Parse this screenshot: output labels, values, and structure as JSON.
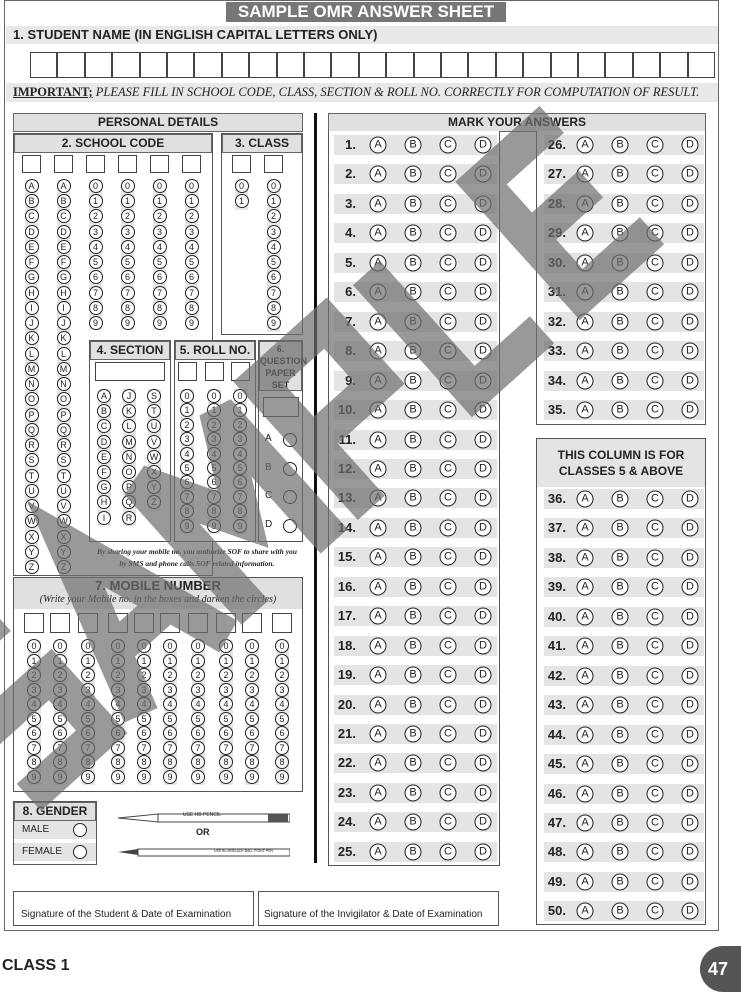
{
  "title": "SAMPLE OMR ANSWER SHEET",
  "student_name": {
    "label": "1. STUDENT NAME (IN ENGLISH CAPITAL LETTERS ONLY)",
    "boxes": 25
  },
  "important": {
    "label": "IMPORTANT;",
    "text": "PLEASE FILL IN SCHOOL CODE, CLASS, SECTION & ROLL NO. CORRECTLY FOR COMPUTATION OF RESULT."
  },
  "personal_details": "PERSONAL DETAILS",
  "school_code": {
    "label": "2. SCHOOL CODE",
    "letters": [
      "A",
      "B",
      "C",
      "D",
      "E",
      "F",
      "G",
      "H",
      "I",
      "J",
      "K",
      "L",
      "M",
      "N",
      "O",
      "P",
      "Q",
      "R",
      "S",
      "T",
      "U",
      "V",
      "W",
      "X",
      "Y",
      "Z"
    ],
    "digits": [
      "0",
      "1",
      "2",
      "3",
      "4",
      "5",
      "6",
      "7",
      "8",
      "9"
    ]
  },
  "class": {
    "label": "3. CLASS",
    "col1": [
      "0",
      "1"
    ]
  },
  "section": {
    "label": "4. SECTION",
    "cols": [
      [
        "A",
        "B",
        "C",
        "D",
        "E",
        "F",
        "G",
        "H",
        "I"
      ],
      [
        "J",
        "K",
        "L",
        "M",
        "N",
        "O",
        "P",
        "Q",
        "R"
      ],
      [
        "S",
        "T",
        "U",
        "V",
        "W",
        "X",
        "Y",
        "Z"
      ]
    ]
  },
  "roll_no": {
    "label": "5. ROLL NO."
  },
  "question_paper_set": {
    "label": "6. QUESTION PAPER SET",
    "options": [
      "A",
      "B",
      "C",
      "D"
    ]
  },
  "consent": {
    "line1": "By sharing your mobile no. you authorize SOF to share with you",
    "line2": "by SMS and phone calls SOF related information."
  },
  "mobile": {
    "label": "7. MOBILE NUMBER",
    "hint": "(Write your Mobile no. in the boxes and darken the circles)"
  },
  "gender": {
    "label": "8. GENDER",
    "options": [
      "MALE",
      "FEMALE"
    ]
  },
  "pencil_label": "USE HB PENCIL",
  "or": "OR",
  "pen_label": "USE BLUE/BLACK BALL POINT PEN",
  "signatures": [
    "Signature of the Student & Date of Examination",
    "Signature of the Invigilator & Date of Examination"
  ],
  "answers": {
    "label": "MARK YOUR ANSWERS",
    "options": [
      "A",
      "B",
      "C",
      "D"
    ],
    "count": 50,
    "note": "THIS COLUMN IS FOR CLASSES 5 & ABOVE"
  },
  "watermark": "SAMPLE",
  "footer": {
    "class": "CLASS 1",
    "page": "47"
  },
  "colors": {
    "title_bg": "#777777",
    "band": "#e4e4e4",
    "page_badge": "#555555"
  }
}
